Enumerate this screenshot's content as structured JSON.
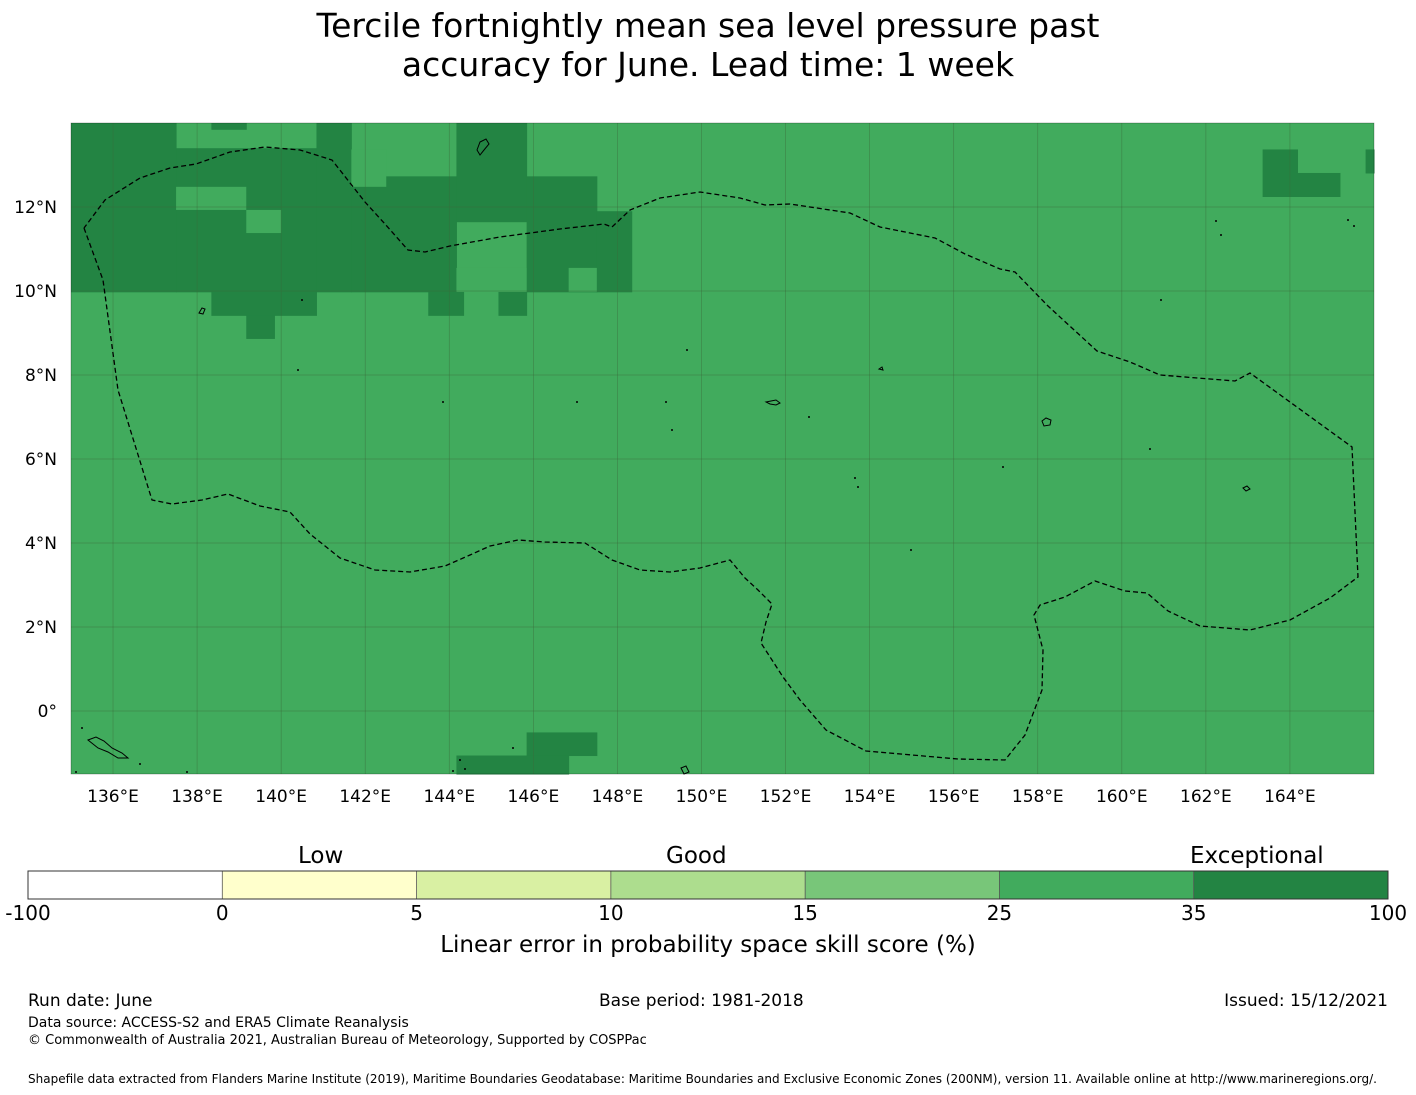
{
  "title": {
    "line1": "Tercile fortnightly mean sea level pressure past",
    "line2": "accuracy for June. Lead time: 1 week"
  },
  "map": {
    "lon_ticks": [
      "136°E",
      "138°E",
      "140°E",
      "142°E",
      "144°E",
      "146°E",
      "148°E",
      "150°E",
      "152°E",
      "154°E",
      "156°E",
      "158°E",
      "160°E",
      "162°E",
      "164°E"
    ],
    "lat_ticks": [
      "12°N",
      "10°N",
      "8°N",
      "6°N",
      "4°N",
      "2°N",
      "0°"
    ],
    "extent": {
      "lon_min": 135.0,
      "lon_max": 166.0,
      "lat_min": -1.5,
      "lat_max": 14.0
    },
    "background_category": "25-35",
    "grid_cell_deg": 0.83,
    "colors": {
      "cat_25_35": "#41ab5d",
      "cat_35_100": "#238443",
      "gridline": "#3a6b3a",
      "boundary": "#000000"
    }
  },
  "colorbar": {
    "labels": {
      "low": "Low",
      "good": "Good",
      "exceptional": "Exceptional"
    },
    "ticks": [
      "-100",
      "0",
      "5",
      "10",
      "15",
      "25",
      "35",
      "100"
    ],
    "colors": [
      "#ffffff",
      "#ffffcc",
      "#d9f0a3",
      "#addd8e",
      "#78c679",
      "#41ab5d",
      "#238443"
    ],
    "title": "Linear error in probability space skill score (%)"
  },
  "footer": {
    "run_date": "Run date: June",
    "base_period": "Base period: 1981-2018",
    "issued": "Issued: 15/12/2021",
    "data_source": "Data source: ACCESS-S2 and ERA5 Climate Reanalysis",
    "copyright": "© Commonwealth of Australia 2021, Australian Bureau of Meteorology, Supported by COSPPac",
    "shapefile": "Shapefile data extracted from Flanders Marine Institute (2019), Maritime Boundaries Geodatabase: Maritime Boundaries and Exclusive Economic Zones (200NM), version 11. Available online at http://www.marineregions.org/."
  }
}
